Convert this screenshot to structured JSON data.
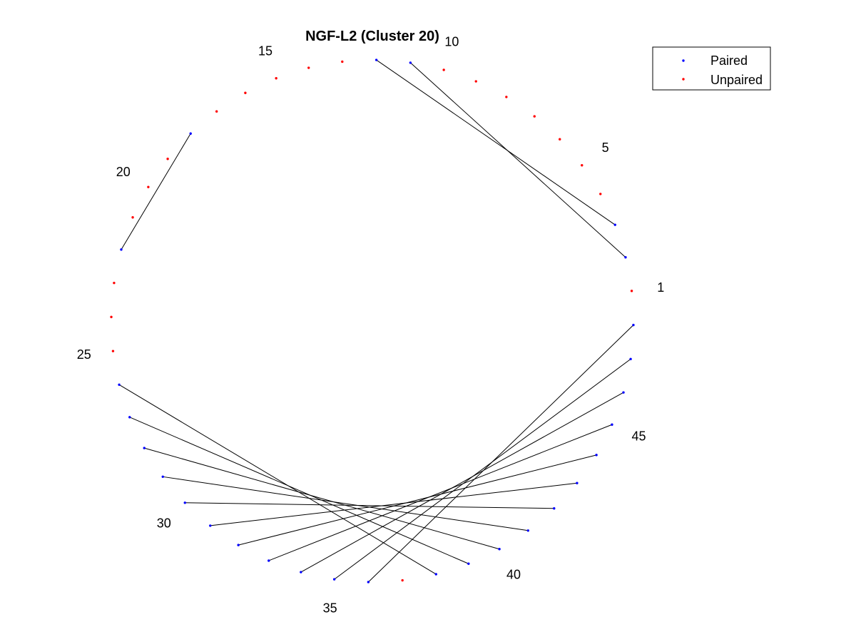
{
  "chart_data": {
    "type": "arc-diagram-circular",
    "title": "NGF-L2 (Cluster 20)",
    "n_positions": 48,
    "position_labels": [
      "1",
      "5",
      "10",
      "15",
      "20",
      "25",
      "30",
      "35",
      "40",
      "45"
    ],
    "labeled_positions": [
      1,
      5,
      10,
      15,
      20,
      25,
      30,
      35,
      40,
      45
    ],
    "pairs": [
      [
        2,
        11
      ],
      [
        3,
        12
      ],
      [
        18,
        22
      ],
      [
        26,
        38
      ],
      [
        27,
        39
      ],
      [
        28,
        40
      ],
      [
        29,
        41
      ],
      [
        30,
        42
      ],
      [
        31,
        43
      ],
      [
        32,
        44
      ],
      [
        33,
        45
      ],
      [
        34,
        46
      ],
      [
        35,
        47
      ],
      [
        36,
        48
      ]
    ],
    "series": [
      {
        "name": "Paired",
        "color": "#0000ff"
      },
      {
        "name": "Unpaired",
        "color": "#ff0000"
      }
    ],
    "line_color": "#000000",
    "legend_position": "top-right",
    "grid": false
  }
}
